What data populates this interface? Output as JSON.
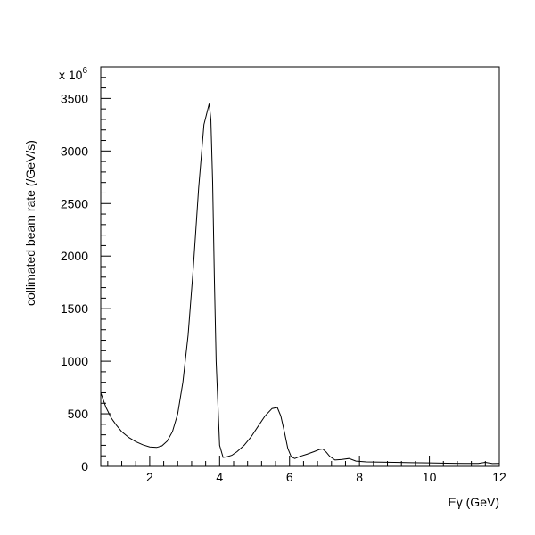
{
  "chart_data": {
    "type": "line",
    "title": "",
    "xlabel": "Eγ (GeV)",
    "ylabel": "collimated beam rate (/GeV/s)",
    "y_multiplier": "x 10",
    "y_multiplier_exponent": "6",
    "xlim": [
      0.6,
      12
    ],
    "ylim": [
      0,
      3800
    ],
    "x_ticks": [
      2,
      4,
      6,
      8,
      10,
      12
    ],
    "x_tick_labels": [
      "2",
      "4",
      "6",
      "8",
      "10",
      "12"
    ],
    "y_ticks": [
      0,
      500,
      1000,
      1500,
      2000,
      2500,
      3000,
      3500
    ],
    "y_tick_labels": [
      "0",
      "500",
      "1000",
      "1500",
      "2000",
      "2500",
      "3000",
      "3500"
    ],
    "grid": false,
    "legend": "none",
    "series": [
      {
        "x": [
          0.6,
          0.75,
          0.9,
          1.05,
          1.2,
          1.4,
          1.6,
          1.8,
          2.0,
          2.2,
          2.35,
          2.5,
          2.65,
          2.8,
          2.95,
          3.1,
          3.25,
          3.4,
          3.55,
          3.7,
          3.75,
          3.8,
          3.85,
          3.9,
          4.0,
          4.1,
          4.2,
          4.35,
          4.5,
          4.7,
          4.9,
          5.1,
          5.3,
          5.5,
          5.65,
          5.75,
          5.85,
          5.95,
          6.05,
          6.15,
          6.3,
          6.5,
          6.7,
          6.85,
          6.95,
          7.05,
          7.15,
          7.3,
          7.5,
          7.7,
          7.9,
          8.2,
          8.6,
          9.0,
          9.5,
          10.0,
          10.5,
          11.0,
          11.4,
          11.6,
          11.8,
          12.0
        ],
        "y": [
          700,
          560,
          460,
          390,
          330,
          275,
          235,
          205,
          185,
          180,
          195,
          240,
          330,
          500,
          800,
          1250,
          1900,
          2650,
          3250,
          3450,
          3300,
          2700,
          1800,
          1000,
          200,
          85,
          90,
          105,
          140,
          200,
          280,
          380,
          480,
          550,
          560,
          480,
          330,
          170,
          90,
          75,
          95,
          115,
          140,
          160,
          165,
          135,
          95,
          60,
          65,
          75,
          50,
          42,
          40,
          38,
          35,
          33,
          30,
          28,
          28,
          38,
          26,
          28
        ]
      }
    ]
  }
}
